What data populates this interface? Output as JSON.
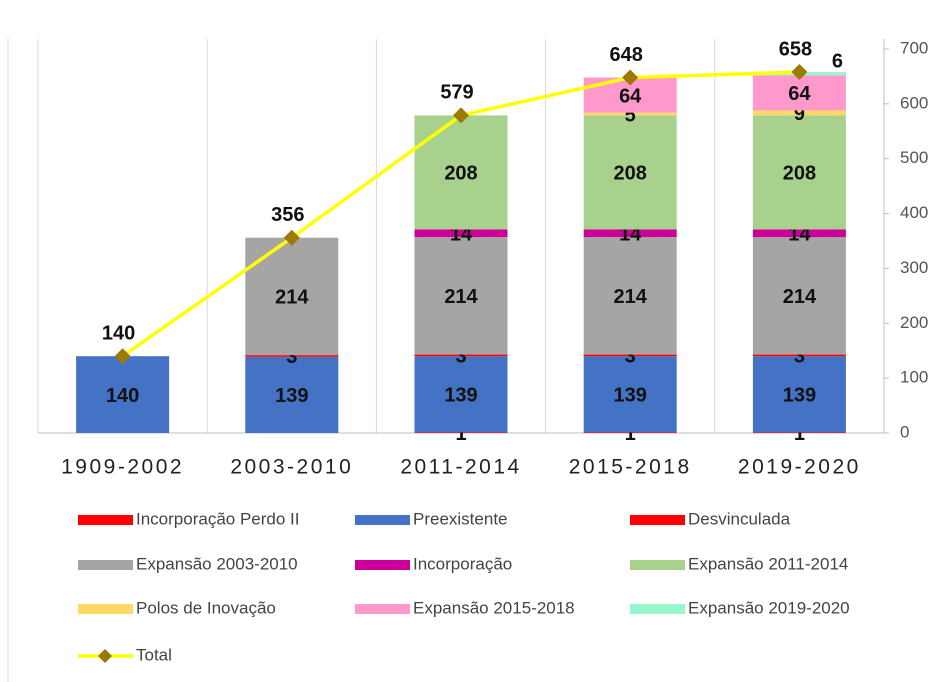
{
  "chart_data": {
    "type": "bar",
    "categories": [
      "1909-2002",
      "2003-2010",
      "2011-2014",
      "2015-2018",
      "2019-2020"
    ],
    "series": [
      {
        "name": "Incorporação Perdo II",
        "color": "#ff0000",
        "values": [
          null,
          null,
          1,
          1,
          1
        ]
      },
      {
        "name": "Preexistente",
        "color": "#4472c4",
        "values": [
          140,
          139,
          139,
          139,
          139
        ]
      },
      {
        "name": "Desvinculada",
        "color": "#ff0000",
        "values": [
          null,
          3,
          3,
          3,
          3
        ]
      },
      {
        "name": "Expansão 2003-2010",
        "color": "#a5a5a5",
        "values": [
          null,
          214,
          214,
          214,
          214
        ]
      },
      {
        "name": "Incorporação",
        "color": "#cc0099",
        "values": [
          null,
          null,
          14,
          14,
          14
        ]
      },
      {
        "name": "Expansão 2011-2014",
        "color": "#a9d18e",
        "values": [
          null,
          null,
          208,
          208,
          208
        ]
      },
      {
        "name": "Polos de Inovação",
        "color": "#ffd966",
        "values": [
          null,
          null,
          null,
          5,
          9
        ]
      },
      {
        "name": "Expansão 2015-2018",
        "color": "#ff99cc",
        "values": [
          null,
          null,
          null,
          64,
          64
        ]
      },
      {
        "name": "Expansão 2019-2020",
        "color": "#99f5cc",
        "values": [
          null,
          null,
          null,
          null,
          6
        ]
      }
    ],
    "total": {
      "name": "Total",
      "type": "line",
      "color": "#ffff00",
      "marker_color": "#9c7a00",
      "values": [
        140,
        356,
        579,
        648,
        658
      ]
    },
    "ylim": [
      0,
      700
    ],
    "yticks": [
      0,
      100,
      200,
      300,
      400,
      500,
      600,
      700
    ],
    "y_axis_side": "right",
    "grid": "vertical"
  }
}
